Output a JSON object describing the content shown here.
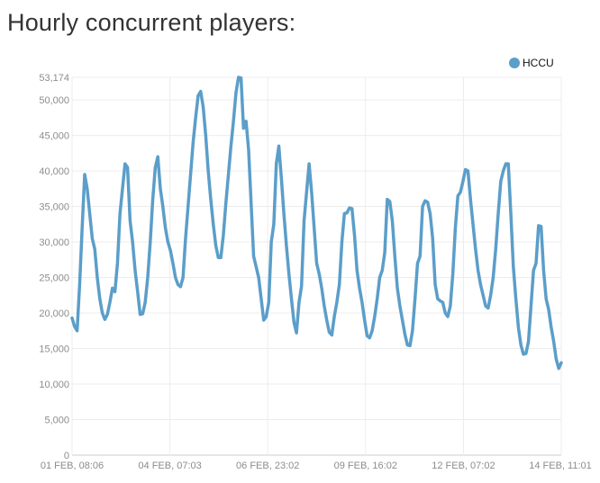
{
  "chart_data": {
    "type": "line",
    "title": "Hourly concurrent players:",
    "ylim": [
      0,
      53174
    ],
    "grid": true,
    "legend_position": "top-right",
    "y_ticks": [
      0,
      5000,
      10000,
      15000,
      20000,
      25000,
      30000,
      35000,
      40000,
      45000,
      50000,
      53174
    ],
    "y_tick_labels": [
      "0",
      "5,000",
      "10,000",
      "15,000",
      "20,000",
      "25,000",
      "30,000",
      "35,000",
      "40,000",
      "45,000",
      "50,000",
      "53,174"
    ],
    "x_tick_labels": [
      "01 FEB, 08:06",
      "04 FEB, 07:03",
      "06 FEB, 23:02",
      "09 FEB, 16:02",
      "12 FEB, 07:02",
      "14 FEB, 11:01"
    ],
    "series": [
      {
        "name": "HCCU",
        "color": "#5b9ec9",
        "values": [
          19300,
          18100,
          17500,
          24000,
          32000,
          39500,
          37500,
          34000,
          30500,
          29000,
          25000,
          22000,
          20000,
          19100,
          19800,
          21500,
          23500,
          23000,
          27000,
          34000,
          37500,
          41000,
          40500,
          33000,
          30000,
          26000,
          23000,
          19800,
          19900,
          21500,
          25000,
          30000,
          36000,
          40500,
          42000,
          37500,
          35000,
          32000,
          30000,
          28800,
          27000,
          25000,
          24000,
          23700,
          25000,
          30500,
          35000,
          39500,
          44000,
          47500,
          50600,
          51200,
          49000,
          45000,
          40000,
          36000,
          32500,
          29500,
          27800,
          27800,
          31000,
          35500,
          39500,
          43500,
          47000,
          51000,
          53174,
          53100,
          46000,
          47000,
          43000,
          35500,
          28000,
          26500,
          25000,
          22000,
          19000,
          19500,
          21500,
          30000,
          32500,
          41000,
          43500,
          39000,
          34000,
          29500,
          25500,
          22000,
          18700,
          17200,
          21500,
          23800,
          33000,
          37000,
          41000,
          37000,
          32000,
          27000,
          25500,
          23500,
          21000,
          19000,
          17300,
          16900,
          19500,
          21500,
          24000,
          30000,
          34000,
          34100,
          34800,
          34700,
          31000,
          26000,
          23500,
          21500,
          19000,
          16800,
          16500,
          17500,
          19500,
          22000,
          25000,
          26000,
          28500,
          36000,
          35700,
          33000,
          28000,
          23500,
          21000,
          19000,
          17000,
          15500,
          15400,
          17500,
          22000,
          27000,
          28000,
          35000,
          35800,
          35600,
          34000,
          30500,
          24000,
          22000,
          21700,
          21500,
          20000,
          19500,
          21000,
          25500,
          32000,
          36500,
          37000,
          38500,
          40200,
          40000,
          36000,
          32500,
          29000,
          26000,
          24000,
          22500,
          21000,
          20700,
          22500,
          25000,
          29000,
          34000,
          38500,
          40000,
          41000,
          41000,
          34000,
          26500,
          22000,
          18000,
          15500,
          14200,
          14300,
          16000,
          21000,
          26000,
          27000,
          32300,
          32200,
          26000,
          22000,
          20500,
          18000,
          16000,
          13500,
          12200,
          13000
        ]
      }
    ]
  }
}
